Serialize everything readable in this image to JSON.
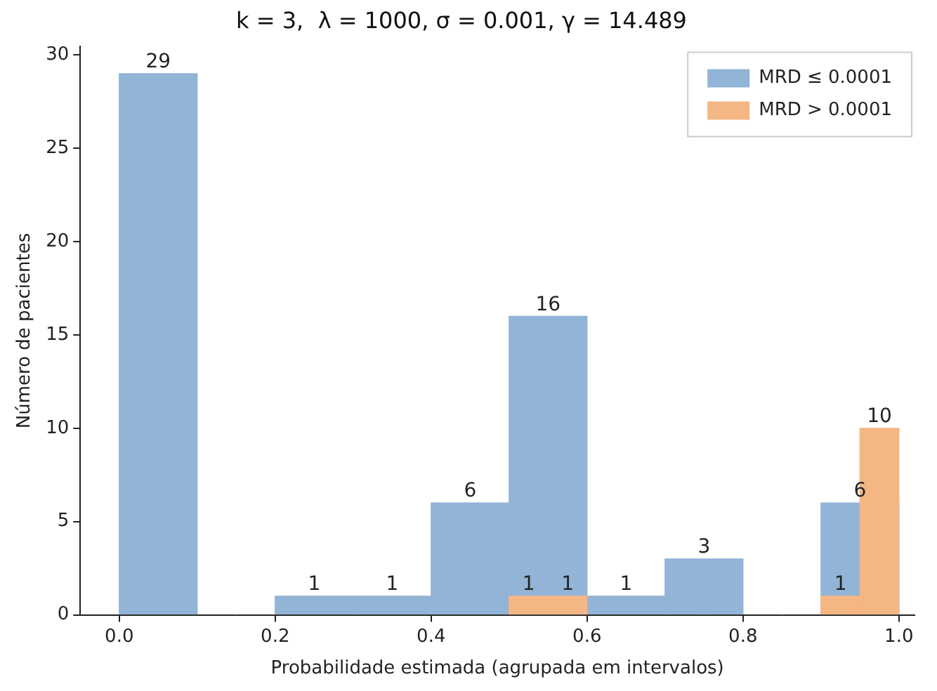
{
  "chart_data": {
    "type": "histogram",
    "title": "k = 3,  λ = 1000, σ = 0.001, γ = 14.489",
    "xlabel": "Probabilidade estimada (agrupada em intervalos)",
    "ylabel": "Número de pacientes",
    "bins": [
      0,
      0.1,
      0.2,
      0.3,
      0.4,
      0.5,
      0.6,
      0.7,
      0.8,
      0.9,
      1.0
    ],
    "series": [
      {
        "name": "MRD ≤ 0.0001",
        "color": "#92b4d6",
        "values": [
          29,
          0,
          1,
          1,
          6,
          16,
          1,
          3,
          0,
          6
        ],
        "value_labels": [
          "29",
          null,
          "1",
          "1",
          "6",
          "16",
          "1",
          "3",
          null,
          "6"
        ]
      },
      {
        "name": "MRD > 0.0001",
        "color": "#f4b683",
        "bins": [
          0.5,
          0.55,
          0.6,
          0.9,
          0.95,
          1.0
        ],
        "values": [
          1,
          1,
          0,
          1,
          10
        ],
        "value_labels": [
          "1",
          "1",
          null,
          "1",
          "10"
        ]
      }
    ],
    "xlim": [
      -0.05,
      1.02
    ],
    "xticks": [
      {
        "value": 0,
        "label": "0.0"
      },
      {
        "value": 0.2,
        "label": "0.2"
      },
      {
        "value": 0.4,
        "label": "0.4"
      },
      {
        "value": 0.6,
        "label": "0.6"
      },
      {
        "value": 0.8,
        "label": "0.8"
      },
      {
        "value": 1,
        "label": "1.0"
      }
    ],
    "ylim": [
      0,
      30.45
    ],
    "yticks": [
      0,
      5,
      10,
      15,
      20,
      25,
      30
    ],
    "grid": false,
    "legend": "top right"
  }
}
